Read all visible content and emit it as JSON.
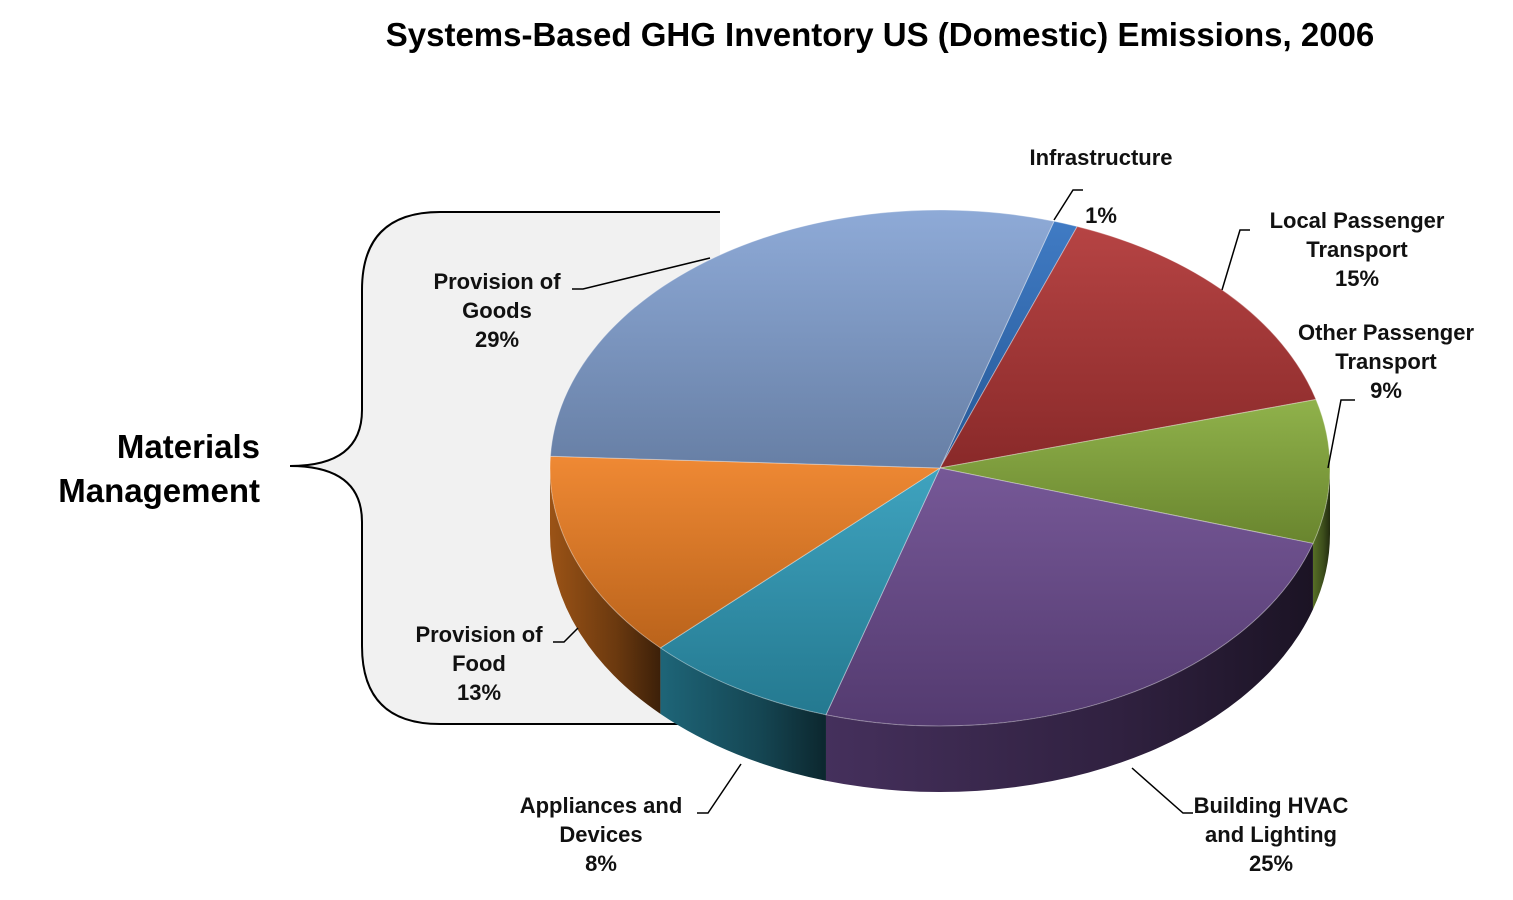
{
  "chart_data": {
    "type": "pie",
    "title": "Systems-Based GHG Inventory US (Domestic) Emissions, 2006",
    "unit": "%",
    "slices": [
      {
        "key": "infra",
        "label_lines": [
          "Infrastructure"
        ],
        "value": 1,
        "value_label": "1%",
        "color": "#2f6fbf"
      },
      {
        "key": "local",
        "label_lines": [
          "Local Passenger",
          "Transport"
        ],
        "value": 15,
        "value_label": "15%",
        "color": "#b03434"
      },
      {
        "key": "other",
        "label_lines": [
          "Other Passenger",
          "Transport"
        ],
        "value": 9,
        "value_label": "9%",
        "color": "#86ab3b"
      },
      {
        "key": "hvac",
        "label_lines": [
          "Building HVAC",
          "and Lighting"
        ],
        "value": 25,
        "value_label": "25%",
        "color": "#6a4a8e"
      },
      {
        "key": "devices",
        "label_lines": [
          "Appliances and",
          "Devices"
        ],
        "value": 8,
        "value_label": "8%",
        "color": "#2e9bb9"
      },
      {
        "key": "food",
        "label_lines": [
          "Provision of",
          "Food"
        ],
        "value": 13,
        "value_label": "13%",
        "color": "#ee7f22"
      },
      {
        "key": "goods",
        "label_lines": [
          "Provision of",
          "Goods"
        ],
        "value": 29,
        "value_label": "29%",
        "color": "#84a3d3"
      }
    ],
    "group_bracket": {
      "label_lines": [
        "Materials",
        "Management"
      ],
      "members": [
        "Provision of Goods",
        "Provision of Food"
      ]
    }
  }
}
